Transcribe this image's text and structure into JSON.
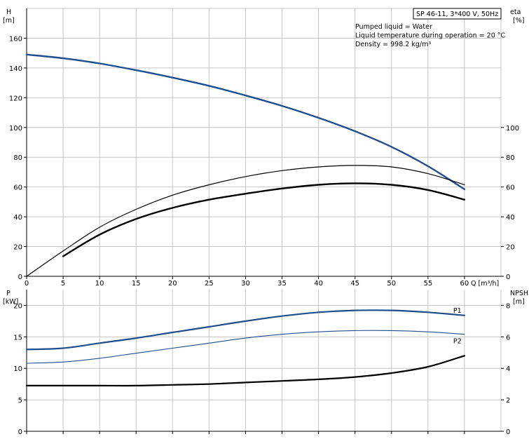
{
  "chart_data": [
    {
      "type": "line",
      "panel": "top",
      "title": "SP 46-11, 3*400 V, 50Hz",
      "annotations": [
        "Pumped liquid = Water",
        "Liquid temperature during operation = 20 °C",
        "Density = 998.2 kg/m³"
      ],
      "xlabel": "Q [m³/h]",
      "xlim": [
        0,
        65
      ],
      "xticks": [
        0,
        5,
        10,
        15,
        20,
        25,
        30,
        35,
        40,
        45,
        50,
        55,
        60
      ],
      "ylabel_left": [
        "H",
        "[m]"
      ],
      "ylim_left": [
        0,
        180
      ],
      "yticks_left": [
        0,
        20,
        40,
        60,
        80,
        100,
        120,
        140,
        160
      ],
      "ylabel_right": [
        "eta",
        "[%]"
      ],
      "ylim_right": [
        0,
        180
      ],
      "yticks_right": [
        0,
        20,
        40,
        60,
        80,
        100
      ],
      "grid": true,
      "series": [
        {
          "axis": "left",
          "color": "#1f4e8c",
          "width": 2.4,
          "x": [
            0,
            5,
            10,
            15,
            20,
            25,
            30,
            35,
            40,
            45,
            50,
            55,
            60
          ],
          "values": [
            149,
            146.5,
            143,
            138.5,
            133.5,
            128,
            121.5,
            114.5,
            106.5,
            97.5,
            87,
            74,
            58.5
          ]
        },
        {
          "axis": "right",
          "color": "#000000",
          "width": 1.2,
          "x": [
            0,
            5,
            10,
            15,
            20,
            25,
            30,
            35,
            40,
            45,
            50,
            55,
            60
          ],
          "values": [
            0,
            17,
            33,
            45,
            54.5,
            61.5,
            67,
            71,
            73.5,
            74.5,
            73.5,
            69,
            61.5
          ]
        },
        {
          "axis": "right",
          "color": "#000000",
          "width": 2.4,
          "x": [
            5,
            10,
            15,
            20,
            25,
            30,
            35,
            40,
            45,
            50,
            55,
            60
          ],
          "values": [
            13.5,
            28,
            38.5,
            46,
            51.5,
            55.5,
            59,
            61.5,
            62.5,
            61.5,
            58,
            51.5
          ]
        }
      ]
    },
    {
      "type": "line",
      "panel": "bottom",
      "xlim": [
        0,
        65
      ],
      "xticks": [
        0,
        5,
        10,
        15,
        20,
        25,
        30,
        35,
        40,
        45,
        50,
        55,
        60
      ],
      "ylabel_left": [
        "P",
        "[kW]"
      ],
      "ylim_left": [
        0,
        22.5
      ],
      "yticks_left": [
        0,
        5,
        10,
        15,
        20
      ],
      "ylabel_right": [
        "NPSH",
        "[m]"
      ],
      "ylim_right": [
        0,
        9
      ],
      "yticks_right": [
        0,
        2,
        4,
        6,
        8
      ],
      "grid": true,
      "series": [
        {
          "name": "P1",
          "axis": "left",
          "color": "#1f4e8c",
          "width": 2.2,
          "x": [
            0,
            5,
            10,
            15,
            20,
            25,
            30,
            35,
            40,
            45,
            50,
            55,
            60
          ],
          "values": [
            13,
            13.2,
            14,
            14.8,
            15.7,
            16.6,
            17.5,
            18.3,
            18.9,
            19.2,
            19.2,
            18.9,
            18.4
          ]
        },
        {
          "name": "P2",
          "axis": "left",
          "color": "#1f4e8c",
          "width": 1.1,
          "x": [
            0,
            5,
            10,
            15,
            20,
            25,
            30,
            35,
            40,
            45,
            50,
            55,
            60
          ],
          "values": [
            10.8,
            11,
            11.6,
            12.4,
            13.2,
            14,
            14.8,
            15.4,
            15.8,
            16,
            16,
            15.8,
            15.4
          ]
        },
        {
          "axis": "right",
          "color": "#000000",
          "width": 2.2,
          "x": [
            0,
            5,
            10,
            15,
            20,
            25,
            30,
            35,
            40,
            45,
            50,
            55,
            60
          ],
          "values": [
            2.9,
            2.9,
            2.9,
            2.9,
            2.95,
            3.0,
            3.1,
            3.2,
            3.3,
            3.45,
            3.7,
            4.1,
            4.8
          ]
        }
      ]
    }
  ]
}
